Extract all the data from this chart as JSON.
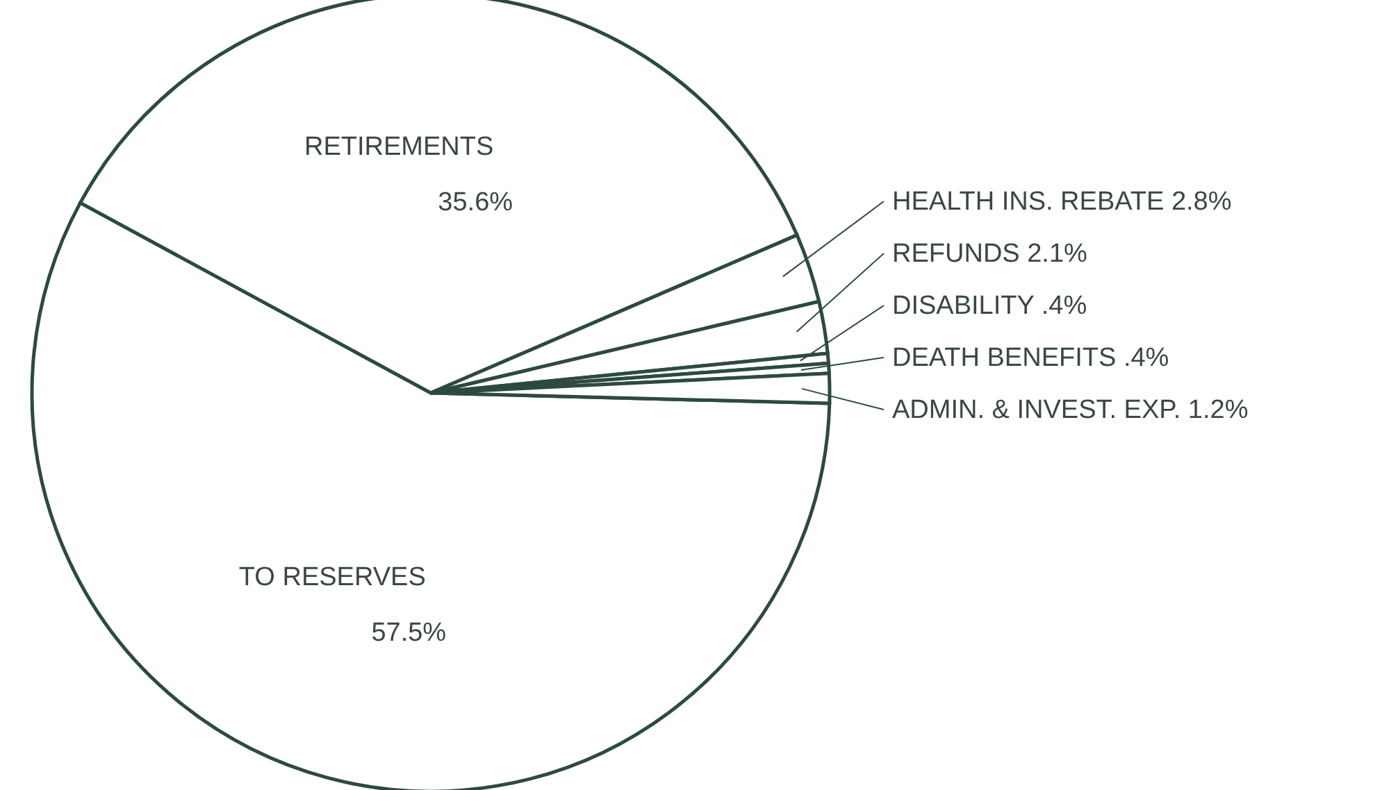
{
  "chart_data": {
    "type": "pie",
    "categories": [
      "TO RESERVES",
      "RETIREMENTS",
      "HEALTH INS. REBATE",
      "REFUNDS",
      "DISABILITY",
      "DEATH BENEFITS",
      "ADMIN. & INVEST. EXP."
    ],
    "values": [
      57.5,
      35.6,
      2.8,
      2.1,
      0.4,
      0.4,
      1.2
    ],
    "colors": [
      "#ffffff",
      "#ffffff",
      "#ffffff",
      "#ffffff",
      "#ffffff",
      "#ffffff",
      "#ffffff"
    ],
    "value_labels": [
      "57.5%",
      "35.6%",
      "2.8%",
      "2.1%",
      ".4%",
      ".4%",
      "1.2%"
    ]
  }
}
